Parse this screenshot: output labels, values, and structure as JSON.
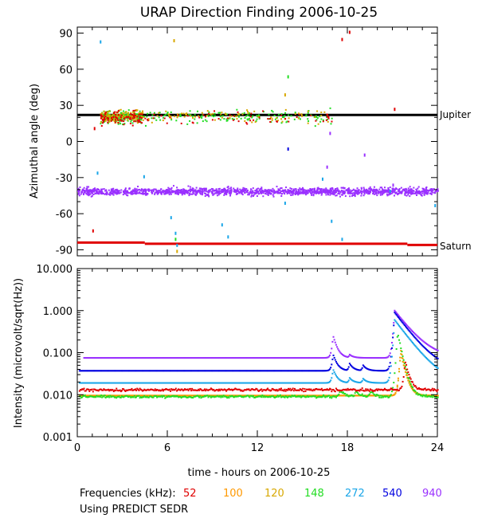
{
  "title": "URAP Direction Finding  2006-10-25",
  "footer": {
    "frequencies_label": "Frequencies (kHz):",
    "frequencies": [
      {
        "label": "52",
        "color": "#e00000"
      },
      {
        "label": "100",
        "color": "#ff9900"
      },
      {
        "label": "120",
        "color": "#d8a800"
      },
      {
        "label": "148",
        "color": "#22dd22"
      },
      {
        "label": "272",
        "color": "#1aa6e8"
      },
      {
        "label": "540",
        "color": "#0000e0"
      },
      {
        "label": "940",
        "color": "#9a30ff"
      }
    ],
    "source_note": "Using PREDICT SEDR"
  },
  "chart_data": [
    {
      "type": "scatter",
      "title": "URAP Direction Finding  2006-10-25",
      "ylabel": "Azimuthal angle (deg)",
      "xlabel": "",
      "xlim": [
        0,
        24
      ],
      "ylim": [
        -95,
        95
      ],
      "xticks": [
        0,
        6,
        12,
        18,
        24
      ],
      "yticks": [
        90,
        60,
        30,
        0,
        -30,
        -60,
        -90
      ],
      "reference_lines": [
        {
          "label": "Jupiter",
          "y": 22,
          "color": "#000000",
          "x": [
            0,
            24
          ]
        },
        {
          "label": "Saturn",
          "y_segments": [
            [
              0,
              4.5,
              -84
            ],
            [
              4.5,
              22,
              -85
            ],
            [
              22,
              24,
              -86
            ]
          ],
          "color": "#e00000"
        }
      ],
      "series": [
        {
          "frequency": "940",
          "color": "#9a30ff",
          "band_center_deg": -41,
          "band_halfwidth_deg": 4,
          "x_range": [
            0,
            24
          ]
        },
        {
          "frequency": "148",
          "color": "#22dd22",
          "cluster_center_deg": 21,
          "x_range": [
            1.5,
            17
          ]
        },
        {
          "frequency": "120",
          "color": "#d8a800",
          "cluster_center_deg": 22,
          "x_range": [
            1.5,
            17
          ]
        },
        {
          "frequency": "52",
          "color": "#e00000",
          "cluster_center_deg": 20,
          "x_range": [
            1.5,
            17
          ]
        },
        {
          "frequency": "272",
          "color": "#1aa6e8",
          "note": "sparse scattered points"
        }
      ]
    },
    {
      "type": "scatter",
      "ylabel": "Intensity (microvolt/sqrt(Hz))",
      "xlabel": "time - hours on 2006-10-25",
      "xlim": [
        0,
        24
      ],
      "ylim": [
        0.001,
        10
      ],
      "yscale": "log",
      "xticks": [
        0,
        6,
        12,
        18,
        24
      ],
      "ytick_labels": [
        "10.000",
        "1.000",
        "0.100",
        "0.010",
        "0.001"
      ],
      "series": [
        {
          "frequency": "940",
          "color": "#9a30ff",
          "baseline": 0.075,
          "peaks": [
            [
              17,
              0.25
            ],
            [
              18.1,
              0.09
            ],
            [
              21.1,
              1.0
            ]
          ]
        },
        {
          "frequency": "540",
          "color": "#0000e0",
          "baseline": 0.037,
          "peaks": [
            [
              17,
              0.09
            ],
            [
              18.1,
              0.055
            ],
            [
              19,
              0.05
            ],
            [
              21.1,
              0.9
            ]
          ]
        },
        {
          "frequency": "272",
          "color": "#1aa6e8",
          "baseline": 0.019,
          "peaks": [
            [
              17,
              0.04
            ],
            [
              18.1,
              0.025
            ],
            [
              19,
              0.024
            ],
            [
              21.1,
              0.6
            ]
          ]
        },
        {
          "frequency": "120",
          "color": "#d8a800",
          "baseline": 0.0095,
          "peaks": [
            [
              21.5,
              0.1
            ]
          ]
        },
        {
          "frequency": "100",
          "color": "#ff9900",
          "baseline": 0.0095,
          "peaks": [
            [
              21.5,
              0.12
            ]
          ]
        },
        {
          "frequency": "148",
          "color": "#22dd22",
          "baseline": 0.009,
          "peaks": [
            [
              17.5,
              0.013
            ],
            [
              18.5,
              0.012
            ],
            [
              19.5,
              0.012
            ],
            [
              21.3,
              0.3
            ]
          ]
        },
        {
          "frequency": "52",
          "color": "#e00000",
          "baseline": 0.013,
          "peaks": [
            [
              21.8,
              0.06
            ]
          ]
        }
      ]
    }
  ]
}
